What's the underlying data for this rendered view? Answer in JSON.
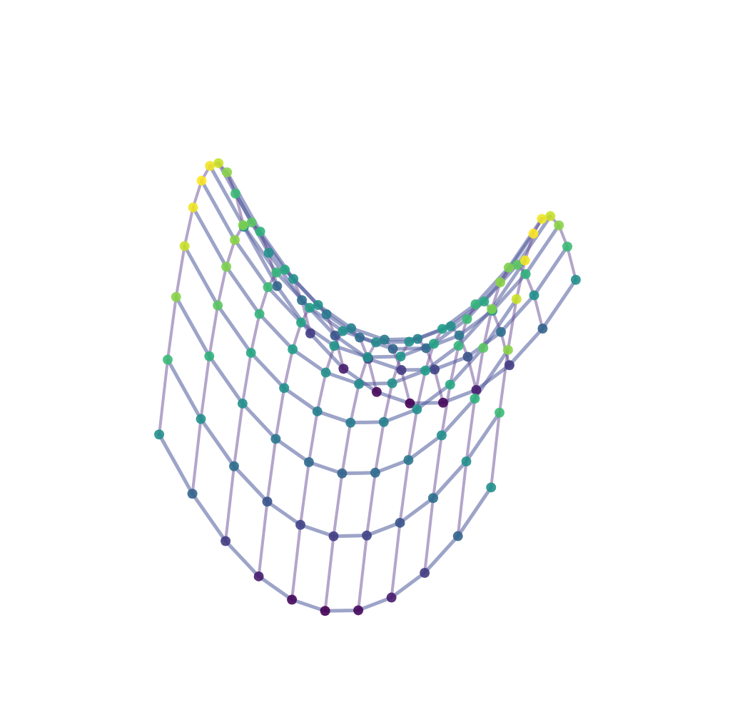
{
  "chart_data": {
    "type": "scatter3d",
    "x": [
      -1,
      -0.8,
      -0.6,
      -0.4,
      -0.2,
      0,
      0.2,
      0.4,
      0.6,
      0.8,
      1
    ],
    "y": [
      -1,
      -0.8,
      -0.6,
      -0.4,
      -0.2,
      0,
      0.2,
      0.4,
      0.6,
      0.8,
      1
    ],
    "z": [
      [
        0,
        -0.36,
        -0.64,
        -0.84,
        -0.96,
        -1,
        -0.96,
        -0.84,
        -0.64,
        -0.36,
        0
      ],
      [
        0.36,
        0,
        -0.28,
        -0.48,
        -0.6,
        -0.64,
        -0.6,
        -0.48,
        -0.28,
        0,
        0.36
      ],
      [
        0.64,
        0.28,
        0,
        -0.2,
        -0.32,
        -0.36,
        -0.32,
        -0.2,
        0,
        0.28,
        0.64
      ],
      [
        0.84,
        0.48,
        0.2,
        0,
        -0.12,
        -0.16,
        -0.12,
        0,
        0.2,
        0.48,
        0.84
      ],
      [
        0.96,
        0.6,
        0.32,
        0.12,
        0,
        -0.04,
        0,
        0.12,
        0.32,
        0.6,
        0.96
      ],
      [
        1,
        0.64,
        0.36,
        0.16,
        0.04,
        0,
        0.04,
        0.16,
        0.36,
        0.64,
        1
      ],
      [
        0.96,
        0.6,
        0.32,
        0.12,
        0,
        -0.04,
        0,
        0.12,
        0.32,
        0.6,
        0.96
      ],
      [
        0.84,
        0.48,
        0.2,
        0,
        -0.12,
        -0.16,
        -0.12,
        0,
        0.2,
        0.48,
        0.84
      ],
      [
        0.64,
        0.28,
        0,
        -0.2,
        -0.32,
        -0.36,
        -0.32,
        -0.2,
        0,
        0.28,
        0.64
      ],
      [
        0.36,
        0,
        -0.28,
        -0.48,
        -0.6,
        -0.64,
        -0.6,
        -0.48,
        -0.28,
        0,
        0.36
      ],
      [
        0,
        -0.36,
        -0.64,
        -0.84,
        -0.96,
        -1,
        -0.96,
        -0.84,
        -0.64,
        -0.36,
        0
      ]
    ],
    "xlim": [
      -1,
      1
    ],
    "ylim": [
      -1,
      1
    ],
    "zlim": [
      -1,
      1
    ],
    "tick_labels": false,
    "grid": false
  }
}
